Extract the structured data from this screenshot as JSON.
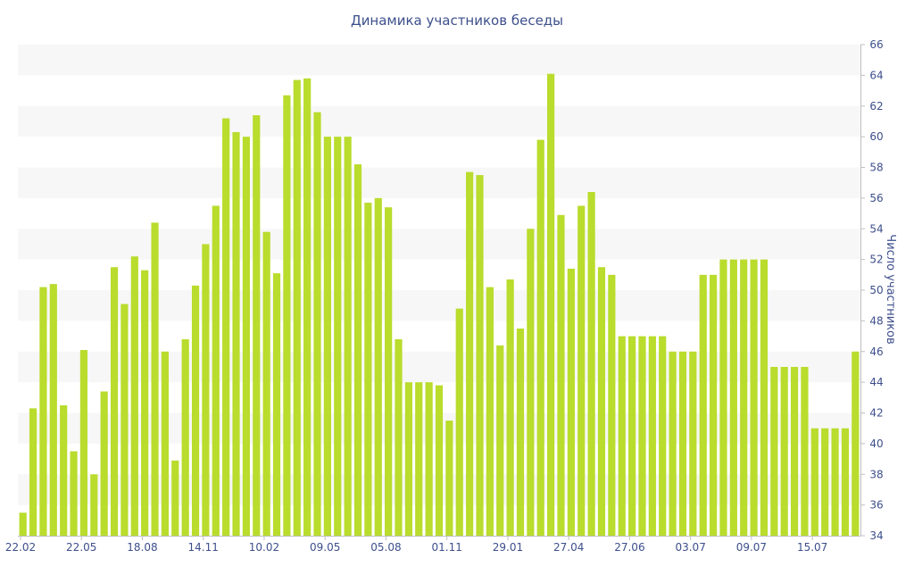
{
  "chart_data": {
    "type": "bar",
    "title": "Динамика участников беседы",
    "ylabel": "Число участников",
    "xlabel": "",
    "ylim": [
      34,
      66
    ],
    "y_ticks": [
      34,
      36,
      38,
      40,
      42,
      44,
      46,
      48,
      50,
      52,
      54,
      56,
      58,
      60,
      62,
      64,
      66
    ],
    "y_axis_side": "right",
    "x_tick_labels": [
      {
        "index": 0,
        "label": "22.02"
      },
      {
        "index": 6,
        "label": "22.05"
      },
      {
        "index": 12,
        "label": "18.08"
      },
      {
        "index": 18,
        "label": "14.11"
      },
      {
        "index": 24,
        "label": "10.02"
      },
      {
        "index": 30,
        "label": "09.05"
      },
      {
        "index": 36,
        "label": "05.08"
      },
      {
        "index": 42,
        "label": "01.11"
      },
      {
        "index": 48,
        "label": "29.01"
      },
      {
        "index": 54,
        "label": "27.04"
      },
      {
        "index": 60,
        "label": "27.06"
      },
      {
        "index": 66,
        "label": "03.07"
      },
      {
        "index": 72,
        "label": "09.07"
      },
      {
        "index": 78,
        "label": "15.07"
      }
    ],
    "values": [
      35.5,
      42.3,
      50.2,
      50.4,
      42.5,
      39.5,
      46.1,
      38.0,
      43.4,
      51.5,
      49.1,
      52.2,
      51.3,
      54.4,
      46.0,
      38.9,
      46.8,
      50.3,
      53.0,
      55.5,
      61.2,
      60.3,
      60.0,
      61.4,
      53.8,
      51.1,
      62.7,
      63.7,
      63.8,
      61.6,
      60.0,
      60.0,
      60.0,
      58.2,
      55.7,
      56.0,
      55.4,
      46.8,
      44.0,
      44.0,
      44.0,
      43.8,
      41.5,
      48.8,
      57.7,
      57.5,
      50.2,
      46.4,
      50.7,
      47.5,
      54.0,
      59.8,
      64.1,
      54.9,
      51.4,
      55.5,
      56.4,
      51.5,
      51.0,
      47.0,
      47.0,
      47.0,
      47.0,
      47.0,
      46.0,
      46.0,
      46.0,
      51.0,
      51.0,
      52.0,
      52.0,
      52.0,
      52.0,
      52.0,
      45.0,
      45.0,
      45.0,
      45.0,
      41.0,
      41.0,
      41.0,
      41.0,
      46.0
    ],
    "colors": {
      "bar": "#b9dc2d",
      "text": "#3d4f8c",
      "band": "#f7f7f7",
      "axis": "#bfbfbf"
    },
    "grid": "alternating horizontal bands"
  }
}
